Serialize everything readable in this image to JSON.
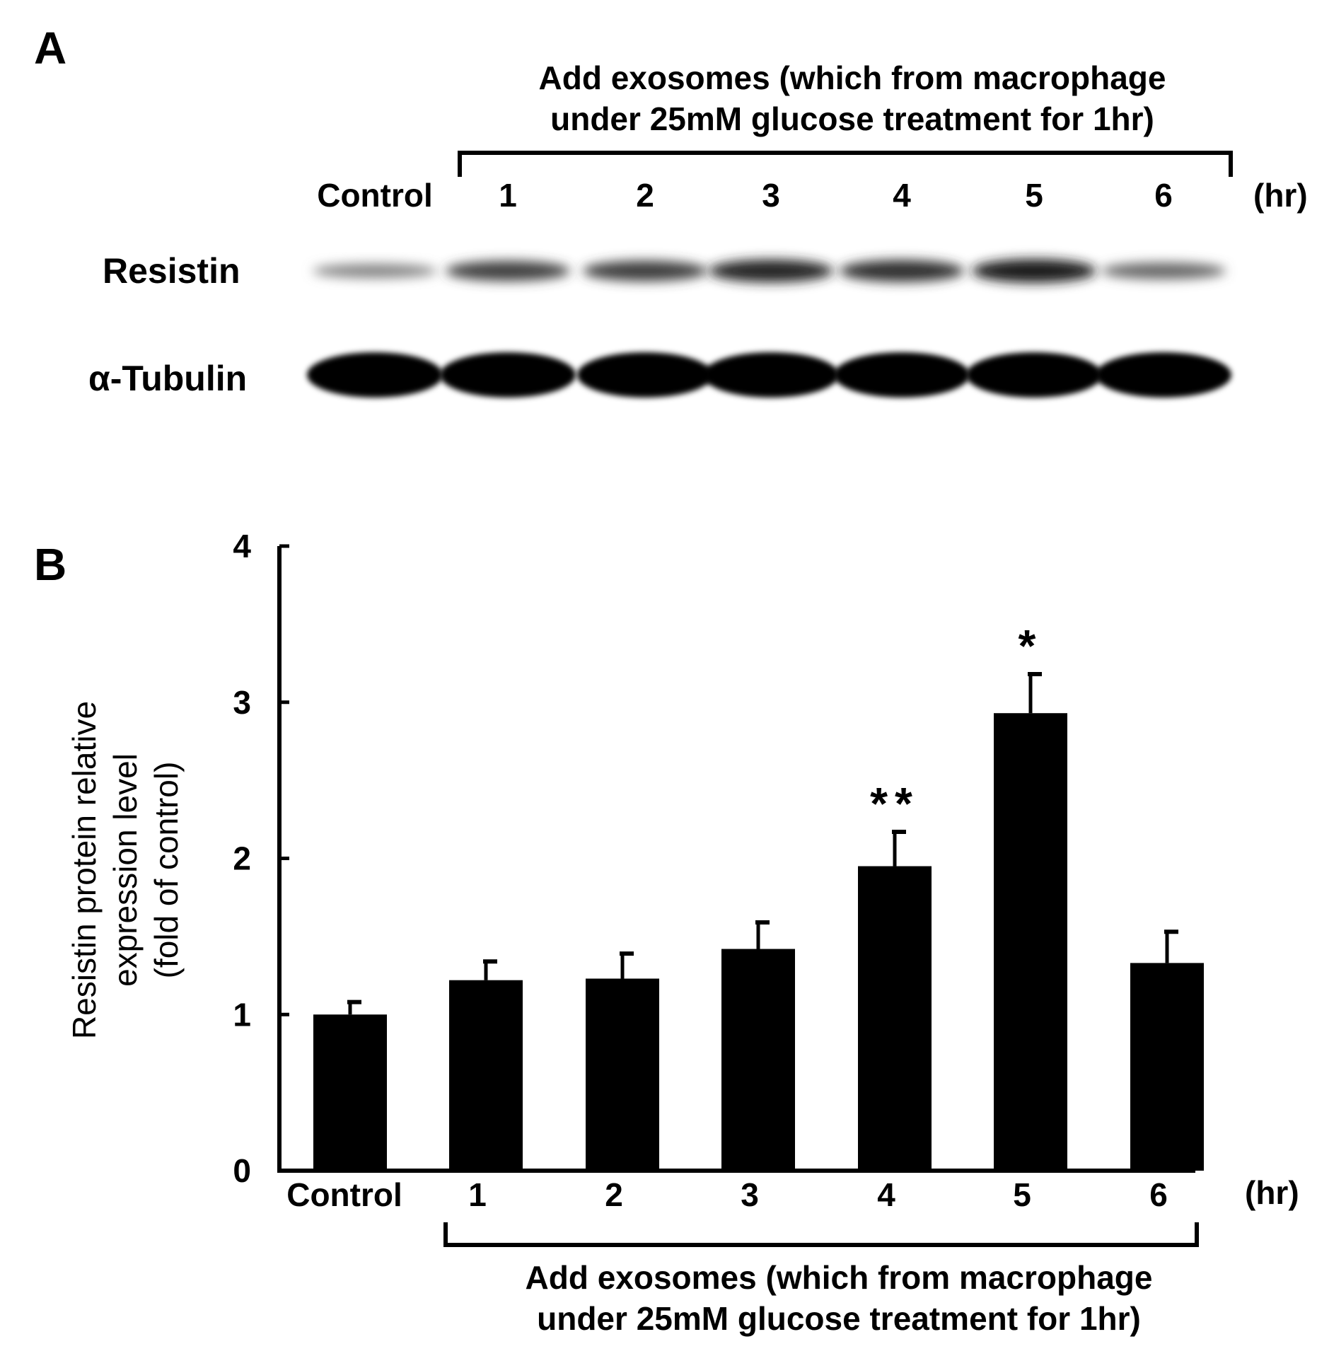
{
  "panel_a": {
    "letter": "A",
    "treatment_line1": "Add exosomes (which from macrophage",
    "treatment_line2": "under 25mM glucose treatment  for 1hr)",
    "lanes": [
      "Control",
      "1",
      "2",
      "3",
      "4",
      "5",
      "6"
    ],
    "unit": "(hr)",
    "row_labels": [
      "Resistin",
      "α-Tubulin"
    ],
    "resistin_band_intensity": [
      0.35,
      0.7,
      0.72,
      0.85,
      0.8,
      0.9,
      0.5
    ],
    "tubulin_band_intensity": [
      1,
      1,
      1,
      1,
      1,
      1,
      1
    ]
  },
  "panel_b": {
    "letter": "B",
    "treatment_line1": "Add exosomes (which from macrophage",
    "treatment_line2": "under 25mM glucose treatment for 1hr)",
    "unit": "(hr)"
  },
  "chart_data": {
    "type": "bar",
    "categories": [
      "Control",
      "1",
      "2",
      "3",
      "4",
      "5",
      "6"
    ],
    "values": [
      1.0,
      1.22,
      1.23,
      1.42,
      1.95,
      2.93,
      1.33
    ],
    "errors": [
      0.08,
      0.12,
      0.16,
      0.17,
      0.22,
      0.25,
      0.2
    ],
    "annotations": [
      "",
      "",
      "",
      "",
      "**",
      "*",
      ""
    ],
    "ylabel_lines": [
      "Resistin protein relative",
      "expression level",
      "(fold of control)"
    ],
    "ylim": [
      0,
      4
    ],
    "yticks": [
      0,
      1,
      2,
      3,
      4
    ],
    "bar_color": "#000000"
  }
}
